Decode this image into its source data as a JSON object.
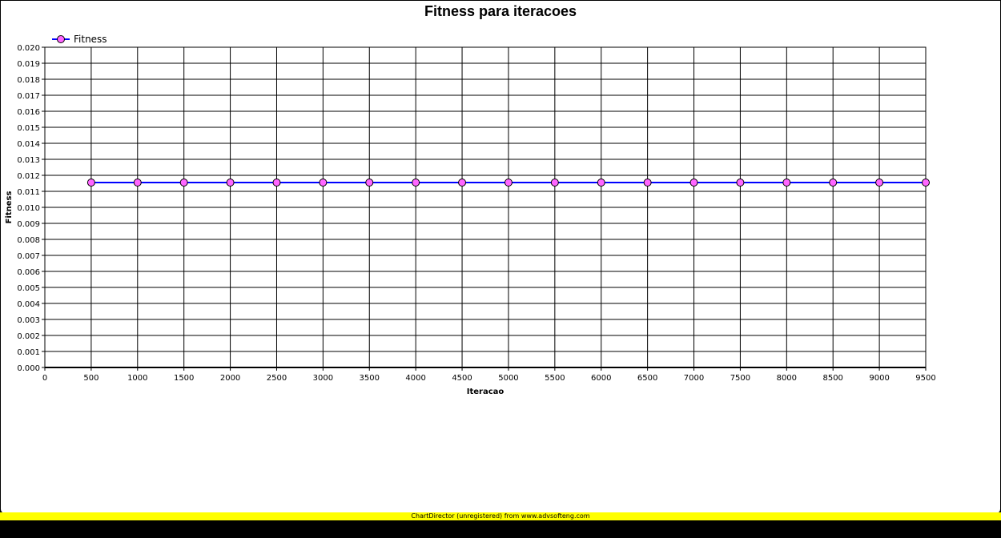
{
  "chart_data": {
    "type": "line",
    "title": "Fitness para iteracoes",
    "xlabel": "Iteracao",
    "ylabel": "Fitness",
    "xlim": [
      0,
      9500
    ],
    "ylim": [
      0,
      0.02
    ],
    "x_ticks": [
      "0",
      "500",
      "1000",
      "1500",
      "2000",
      "2500",
      "3000",
      "3500",
      "4000",
      "4500",
      "5000",
      "5500",
      "6000",
      "6500",
      "7000",
      "7500",
      "8000",
      "8500",
      "9000",
      "9500"
    ],
    "y_ticks": [
      "0.000",
      "0.001",
      "0.002",
      "0.003",
      "0.004",
      "0.005",
      "0.006",
      "0.007",
      "0.008",
      "0.009",
      "0.010",
      "0.011",
      "0.012",
      "0.013",
      "0.014",
      "0.015",
      "0.016",
      "0.017",
      "0.018",
      "0.019",
      "0.020"
    ],
    "grid": true,
    "legend_position": "top-left",
    "series": [
      {
        "name": "Fitness",
        "line_color": "#0000ff",
        "marker_color": "#ff66ff",
        "x": [
          500,
          1000,
          1500,
          2000,
          2500,
          3000,
          3500,
          4000,
          4500,
          5000,
          5500,
          6000,
          6500,
          7000,
          7500,
          8000,
          8500,
          9000,
          9500
        ],
        "values": [
          0.01155,
          0.01155,
          0.01155,
          0.01155,
          0.01155,
          0.01155,
          0.01155,
          0.01155,
          0.01155,
          0.01155,
          0.01155,
          0.01155,
          0.01155,
          0.01155,
          0.01155,
          0.01155,
          0.01155,
          0.01155,
          0.01155
        ]
      }
    ]
  },
  "footer": {
    "text": "ChartDirector (unregistered) from www.advsofteng.com",
    "color": "#ffff00"
  }
}
